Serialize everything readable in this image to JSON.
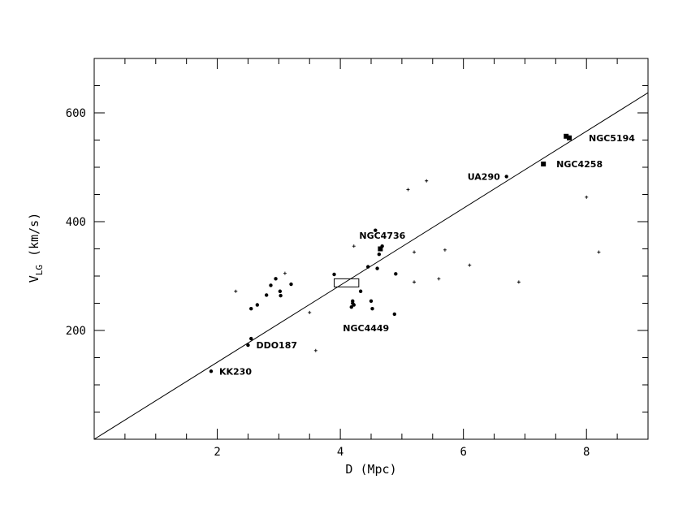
{
  "chart_data": {
    "type": "scatter",
    "title": "",
    "xlabel": "D (Mpc)",
    "ylabel": {
      "main": "V",
      "sub": "LG",
      "unit": "(km/s)"
    },
    "xlim": [
      0,
      9
    ],
    "ylim": [
      0,
      700
    ],
    "x_ticks": [
      2,
      4,
      6,
      8
    ],
    "y_ticks": [
      200,
      400,
      600
    ],
    "x_minor_step": 0.5,
    "y_minor_step": 50,
    "grid": false,
    "legend": "none",
    "series": [
      {
        "marker": "dot",
        "points": [
          [
            1.9,
            125
          ],
          [
            2.5,
            173
          ],
          [
            2.55,
            185
          ],
          [
            2.55,
            240
          ],
          [
            2.65,
            247
          ],
          [
            2.8,
            265
          ],
          [
            2.87,
            283
          ],
          [
            2.95,
            295
          ],
          [
            3.02,
            272
          ],
          [
            3.03,
            264
          ],
          [
            3.2,
            285
          ],
          [
            3.9,
            303
          ],
          [
            4.18,
            243
          ],
          [
            4.2,
            250
          ],
          [
            4.2,
            254
          ],
          [
            4.22,
            247
          ],
          [
            4.33,
            272
          ],
          [
            4.45,
            317
          ],
          [
            4.5,
            254
          ],
          [
            4.52,
            240
          ],
          [
            4.57,
            384
          ],
          [
            4.6,
            314
          ],
          [
            4.63,
            340
          ],
          [
            4.65,
            351
          ],
          [
            4.68,
            355
          ],
          [
            4.88,
            230
          ],
          [
            4.9,
            304
          ],
          [
            6.7,
            483
          ]
        ]
      },
      {
        "marker": "square",
        "points": [
          [
            4.65,
            350
          ],
          [
            7.3,
            506
          ],
          [
            7.67,
            557
          ],
          [
            7.72,
            554
          ]
        ]
      },
      {
        "marker": "plus",
        "points": [
          [
            2.3,
            272
          ],
          [
            3.1,
            305
          ],
          [
            3.5,
            233
          ],
          [
            3.6,
            163
          ],
          [
            4.22,
            355
          ],
          [
            5.1,
            459
          ],
          [
            5.2,
            344
          ],
          [
            5.2,
            289
          ],
          [
            5.4,
            475
          ],
          [
            5.6,
            295
          ],
          [
            5.7,
            348
          ],
          [
            6.1,
            320
          ],
          [
            6.9,
            289
          ],
          [
            8.0,
            445
          ],
          [
            8.2,
            344
          ]
        ]
      }
    ],
    "fit_line": {
      "x": [
        0,
        9
      ],
      "y": [
        0,
        637
      ]
    },
    "box": {
      "x": [
        3.9,
        4.3
      ],
      "y": [
        280,
        295
      ]
    },
    "annotations": [
      {
        "text": "KK230",
        "x": 1.9,
        "y": 125,
        "dx": 10,
        "dy": 4
      },
      {
        "text": "DDO187",
        "x": 2.5,
        "y": 173,
        "dx": 10,
        "dy": 4
      },
      {
        "text": "NGC4449",
        "x": 4.2,
        "y": 243,
        "dx": -12,
        "dy": 30
      },
      {
        "text": "NGC4736",
        "x": 4.65,
        "y": 351,
        "dx": -26,
        "dy": -12
      },
      {
        "text": "UA290",
        "x": 6.7,
        "y": 483,
        "dx": -48,
        "dy": 4
      },
      {
        "text": "NGC4258",
        "x": 7.3,
        "y": 506,
        "dx": 16,
        "dy": 4
      },
      {
        "text": "NGC5194",
        "x": 7.72,
        "y": 554,
        "dx": 24,
        "dy": 4
      }
    ]
  }
}
